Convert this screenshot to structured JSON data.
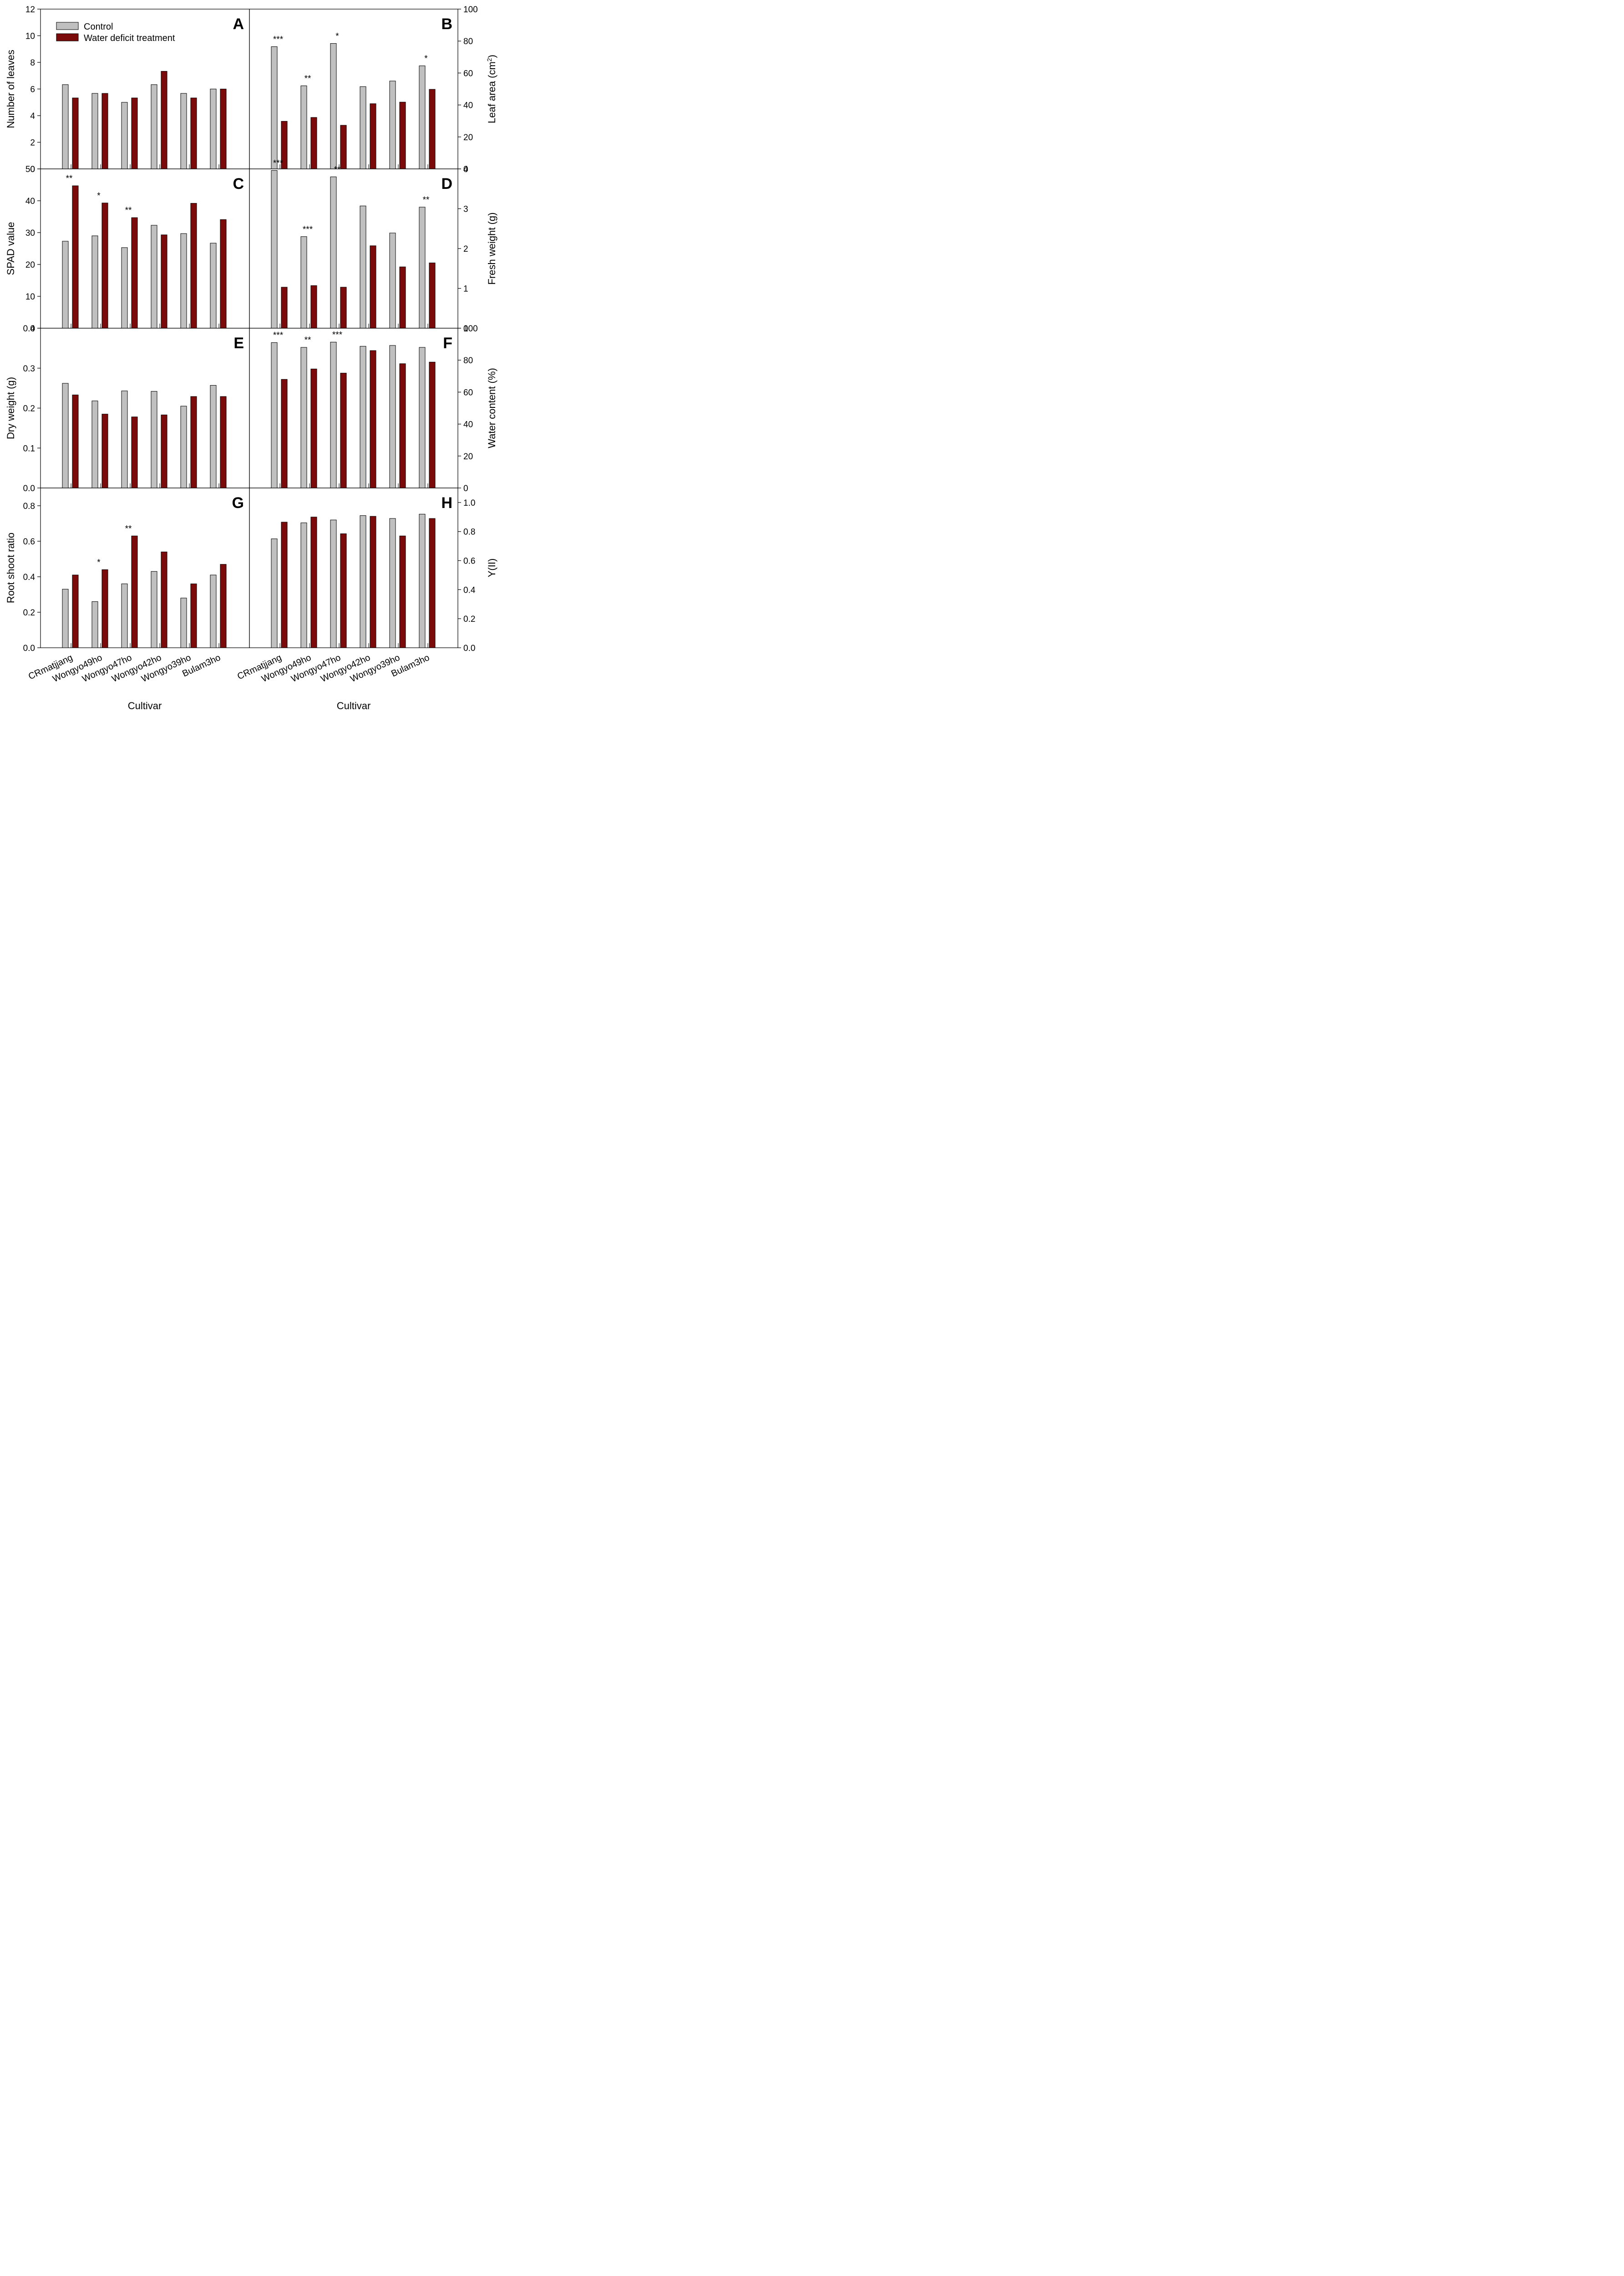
{
  "legend": {
    "control_label": "Control",
    "treatment_label": "Water deficit treatment",
    "placement": "top-left of panel A"
  },
  "colors": {
    "control": "#c0c0c0",
    "treatment": "#7b0a0a",
    "axis": "#000000"
  },
  "x_axis": {
    "label_left": "Cultivar",
    "label_right": "Cultivar"
  },
  "chart_data": [
    {
      "panel": "A",
      "type": "bar",
      "side": "left",
      "ylabel": "Number of leaves",
      "ylabel_sup": "",
      "ylim": [
        0,
        12
      ],
      "yticks": [
        0,
        2,
        4,
        6,
        8,
        10,
        12
      ],
      "tick_decimals": 0,
      "categories": [
        "CRmatjjang",
        "Wongyo49ho",
        "Wongyo47ho",
        "Wongyo42ho",
        "Wongyo39ho",
        "Bulam3ho"
      ],
      "series": [
        {
          "name": "Control",
          "values": [
            6.33,
            5.67,
            5.0,
            6.33,
            5.67,
            6.0
          ]
        },
        {
          "name": "Water deficit treatment",
          "values": [
            5.33,
            5.67,
            5.33,
            7.33,
            5.33,
            6.0
          ]
        }
      ],
      "significance": [
        "",
        "",
        "",
        "",
        "",
        ""
      ],
      "grid": false
    },
    {
      "panel": "B",
      "type": "bar",
      "side": "right",
      "ylabel": "Leaf area (cm",
      "ylabel_sup": "2",
      "ylabel_end": ")",
      "ylim": [
        0,
        100
      ],
      "yticks": [
        0,
        20,
        40,
        60,
        80,
        100
      ],
      "tick_decimals": 0,
      "categories": [
        "CRmatjjang",
        "Wongyo49ho",
        "Wongyo47ho",
        "Wongyo42ho",
        "Wongyo39ho",
        "Bulam3ho"
      ],
      "series": [
        {
          "name": "Control",
          "values": [
            76.5,
            52.0,
            78.5,
            51.5,
            55.0,
            64.5
          ]
        },
        {
          "name": "Water deficit treatment",
          "values": [
            29.8,
            32.2,
            27.3,
            40.8,
            41.8,
            49.8
          ]
        }
      ],
      "significance": [
        "***",
        "**",
        "*",
        "",
        "",
        "*"
      ],
      "grid": false
    },
    {
      "panel": "C",
      "type": "bar",
      "side": "left",
      "ylabel": "SPAD value",
      "ylabel_sup": "",
      "ylim": [
        0,
        50
      ],
      "yticks": [
        0,
        10,
        20,
        30,
        40,
        50
      ],
      "tick_decimals": 0,
      "categories": [
        "CRmatjjang",
        "Wongyo49ho",
        "Wongyo47ho",
        "Wongyo42ho",
        "Wongyo39ho",
        "Bulam3ho"
      ],
      "series": [
        {
          "name": "Control",
          "values": [
            27.3,
            29.0,
            25.3,
            32.3,
            29.7,
            26.7
          ]
        },
        {
          "name": "Water deficit treatment",
          "values": [
            44.7,
            39.3,
            34.7,
            29.3,
            39.2,
            34.1
          ]
        }
      ],
      "significance": [
        "**",
        "*",
        "**",
        "",
        "",
        ""
      ],
      "grid": false
    },
    {
      "panel": "D",
      "type": "bar",
      "side": "right",
      "ylabel": "Fresh weight (g)",
      "ylabel_sup": "",
      "ylim": [
        0,
        4
      ],
      "yticks": [
        0,
        1,
        2,
        3,
        4
      ],
      "tick_decimals": 0,
      "categories": [
        "CRmatjjang",
        "Wongyo49ho",
        "Wongyo47ho",
        "Wongyo42ho",
        "Wongyo39ho",
        "Bulam3ho"
      ],
      "series": [
        {
          "name": "Control",
          "values": [
            3.96,
            2.3,
            3.8,
            3.07,
            2.39,
            3.04
          ]
        },
        {
          "name": "Water deficit treatment",
          "values": [
            1.03,
            1.07,
            1.03,
            2.07,
            1.54,
            1.64
          ]
        }
      ],
      "significance": [
        "***",
        "***",
        "**",
        "",
        "",
        "**"
      ],
      "grid": false
    },
    {
      "panel": "E",
      "type": "bar",
      "side": "left",
      "ylabel": "Dry weight (g)",
      "ylabel_sup": "",
      "ylim": [
        0,
        0.4
      ],
      "yticks": [
        0.0,
        0.1,
        0.2,
        0.3,
        0.4
      ],
      "tick_decimals": 1,
      "categories": [
        "CRmatjjang",
        "Wongyo49ho",
        "Wongyo47ho",
        "Wongyo42ho",
        "Wongyo39ho",
        "Bulam3ho"
      ],
      "series": [
        {
          "name": "Control",
          "values": [
            0.262,
            0.218,
            0.243,
            0.242,
            0.205,
            0.257
          ]
        },
        {
          "name": "Water deficit treatment",
          "values": [
            0.233,
            0.185,
            0.178,
            0.183,
            0.229,
            0.229
          ]
        }
      ],
      "significance": [
        "",
        "",
        "",
        "",
        "",
        ""
      ],
      "grid": false
    },
    {
      "panel": "F",
      "type": "bar",
      "side": "right",
      "ylabel": "Water content (%)",
      "ylabel_sup": "",
      "ylim": [
        0,
        100
      ],
      "yticks": [
        0,
        20,
        40,
        60,
        80,
        100
      ],
      "tick_decimals": 0,
      "categories": [
        "CRmatjjang",
        "Wongyo49ho",
        "Wongyo47ho",
        "Wongyo42ho",
        "Wongyo39ho",
        "Bulam3ho"
      ],
      "series": [
        {
          "name": "Control",
          "values": [
            91.0,
            88.0,
            91.3,
            88.7,
            89.2,
            88.0
          ]
        },
        {
          "name": "Water deficit treatment",
          "values": [
            68.0,
            74.5,
            71.9,
            86.0,
            77.8,
            78.8
          ]
        }
      ],
      "significance": [
        "***",
        "**",
        "***",
        "",
        "",
        ""
      ],
      "grid": false
    },
    {
      "panel": "G",
      "type": "bar",
      "side": "left",
      "ylabel": "Root shoot ratio",
      "ylabel_sup": "",
      "ylim": [
        0,
        0.9
      ],
      "yticks": [
        0.0,
        0.2,
        0.4,
        0.6,
        0.8
      ],
      "tick_decimals": 1,
      "categories": [
        "CRmatjjang",
        "Wongyo49ho",
        "Wongyo47ho",
        "Wongyo42ho",
        "Wongyo39ho",
        "Bulam3ho"
      ],
      "series": [
        {
          "name": "Control",
          "values": [
            0.33,
            0.26,
            0.36,
            0.43,
            0.28,
            0.41
          ]
        },
        {
          "name": "Water deficit treatment",
          "values": [
            0.41,
            0.44,
            0.63,
            0.54,
            0.36,
            0.47
          ]
        }
      ],
      "significance": [
        "",
        "*",
        "**",
        "",
        "",
        ""
      ],
      "grid": false
    },
    {
      "panel": "H",
      "type": "bar",
      "side": "right",
      "ylabel": "Y(II)",
      "ylabel_sup": "",
      "ylim": [
        0,
        1.1
      ],
      "yticks": [
        0.0,
        0.2,
        0.4,
        0.6,
        0.8,
        1.0
      ],
      "tick_decimals": 1,
      "categories": [
        "CRmatjjang",
        "Wongyo49ho",
        "Wongyo47ho",
        "Wongyo42ho",
        "Wongyo39ho",
        "Bulam3ho"
      ],
      "series": [
        {
          "name": "Control",
          "values": [
            0.75,
            0.86,
            0.88,
            0.91,
            0.89,
            0.92
          ]
        },
        {
          "name": "Water deficit treatment",
          "values": [
            0.865,
            0.9,
            0.785,
            0.905,
            0.77,
            0.89
          ]
        }
      ],
      "significance": [
        "",
        "",
        "",
        "",
        "",
        ""
      ],
      "grid": false
    }
  ]
}
